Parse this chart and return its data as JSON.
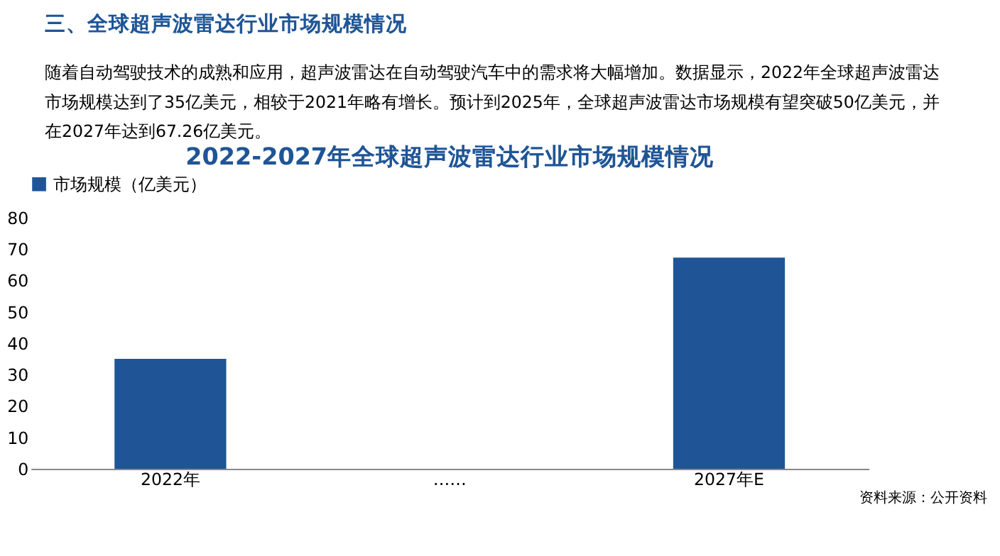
{
  "chart_data": {
    "type": "bar",
    "title": "2022-2027年全球超声波雷达行业市场规模情况",
    "annotations": [
      "三、全球超声波雷达行业市场规模情况",
      "随着自动驾驶技术的成熟和应用，超声波雷达在自动驾驶汽车中的需求将大幅增加。数据显示，2022年全球超声波雷达",
      "市场规模达到了35亿美元，相较于2021年略有增长。预计到2025年，全球超声波雷达市场规模有望突破50亿美元，并",
      "在2027年达到67.26亿美元。",
      "资料来源：公开资料"
    ],
    "categories": [
      "2022年",
      "……",
      "2027年E"
    ],
    "series": [
      {
        "name": "市场规模（亿美元）",
        "color": "#1f5596",
        "values": [
          35,
          null,
          67.26
        ]
      }
    ],
    "ylim": [
      0,
      80
    ],
    "yticks": [
      0,
      10,
      20,
      30,
      40,
      50,
      60,
      70,
      80
    ],
    "grid": false,
    "legend": "top"
  }
}
